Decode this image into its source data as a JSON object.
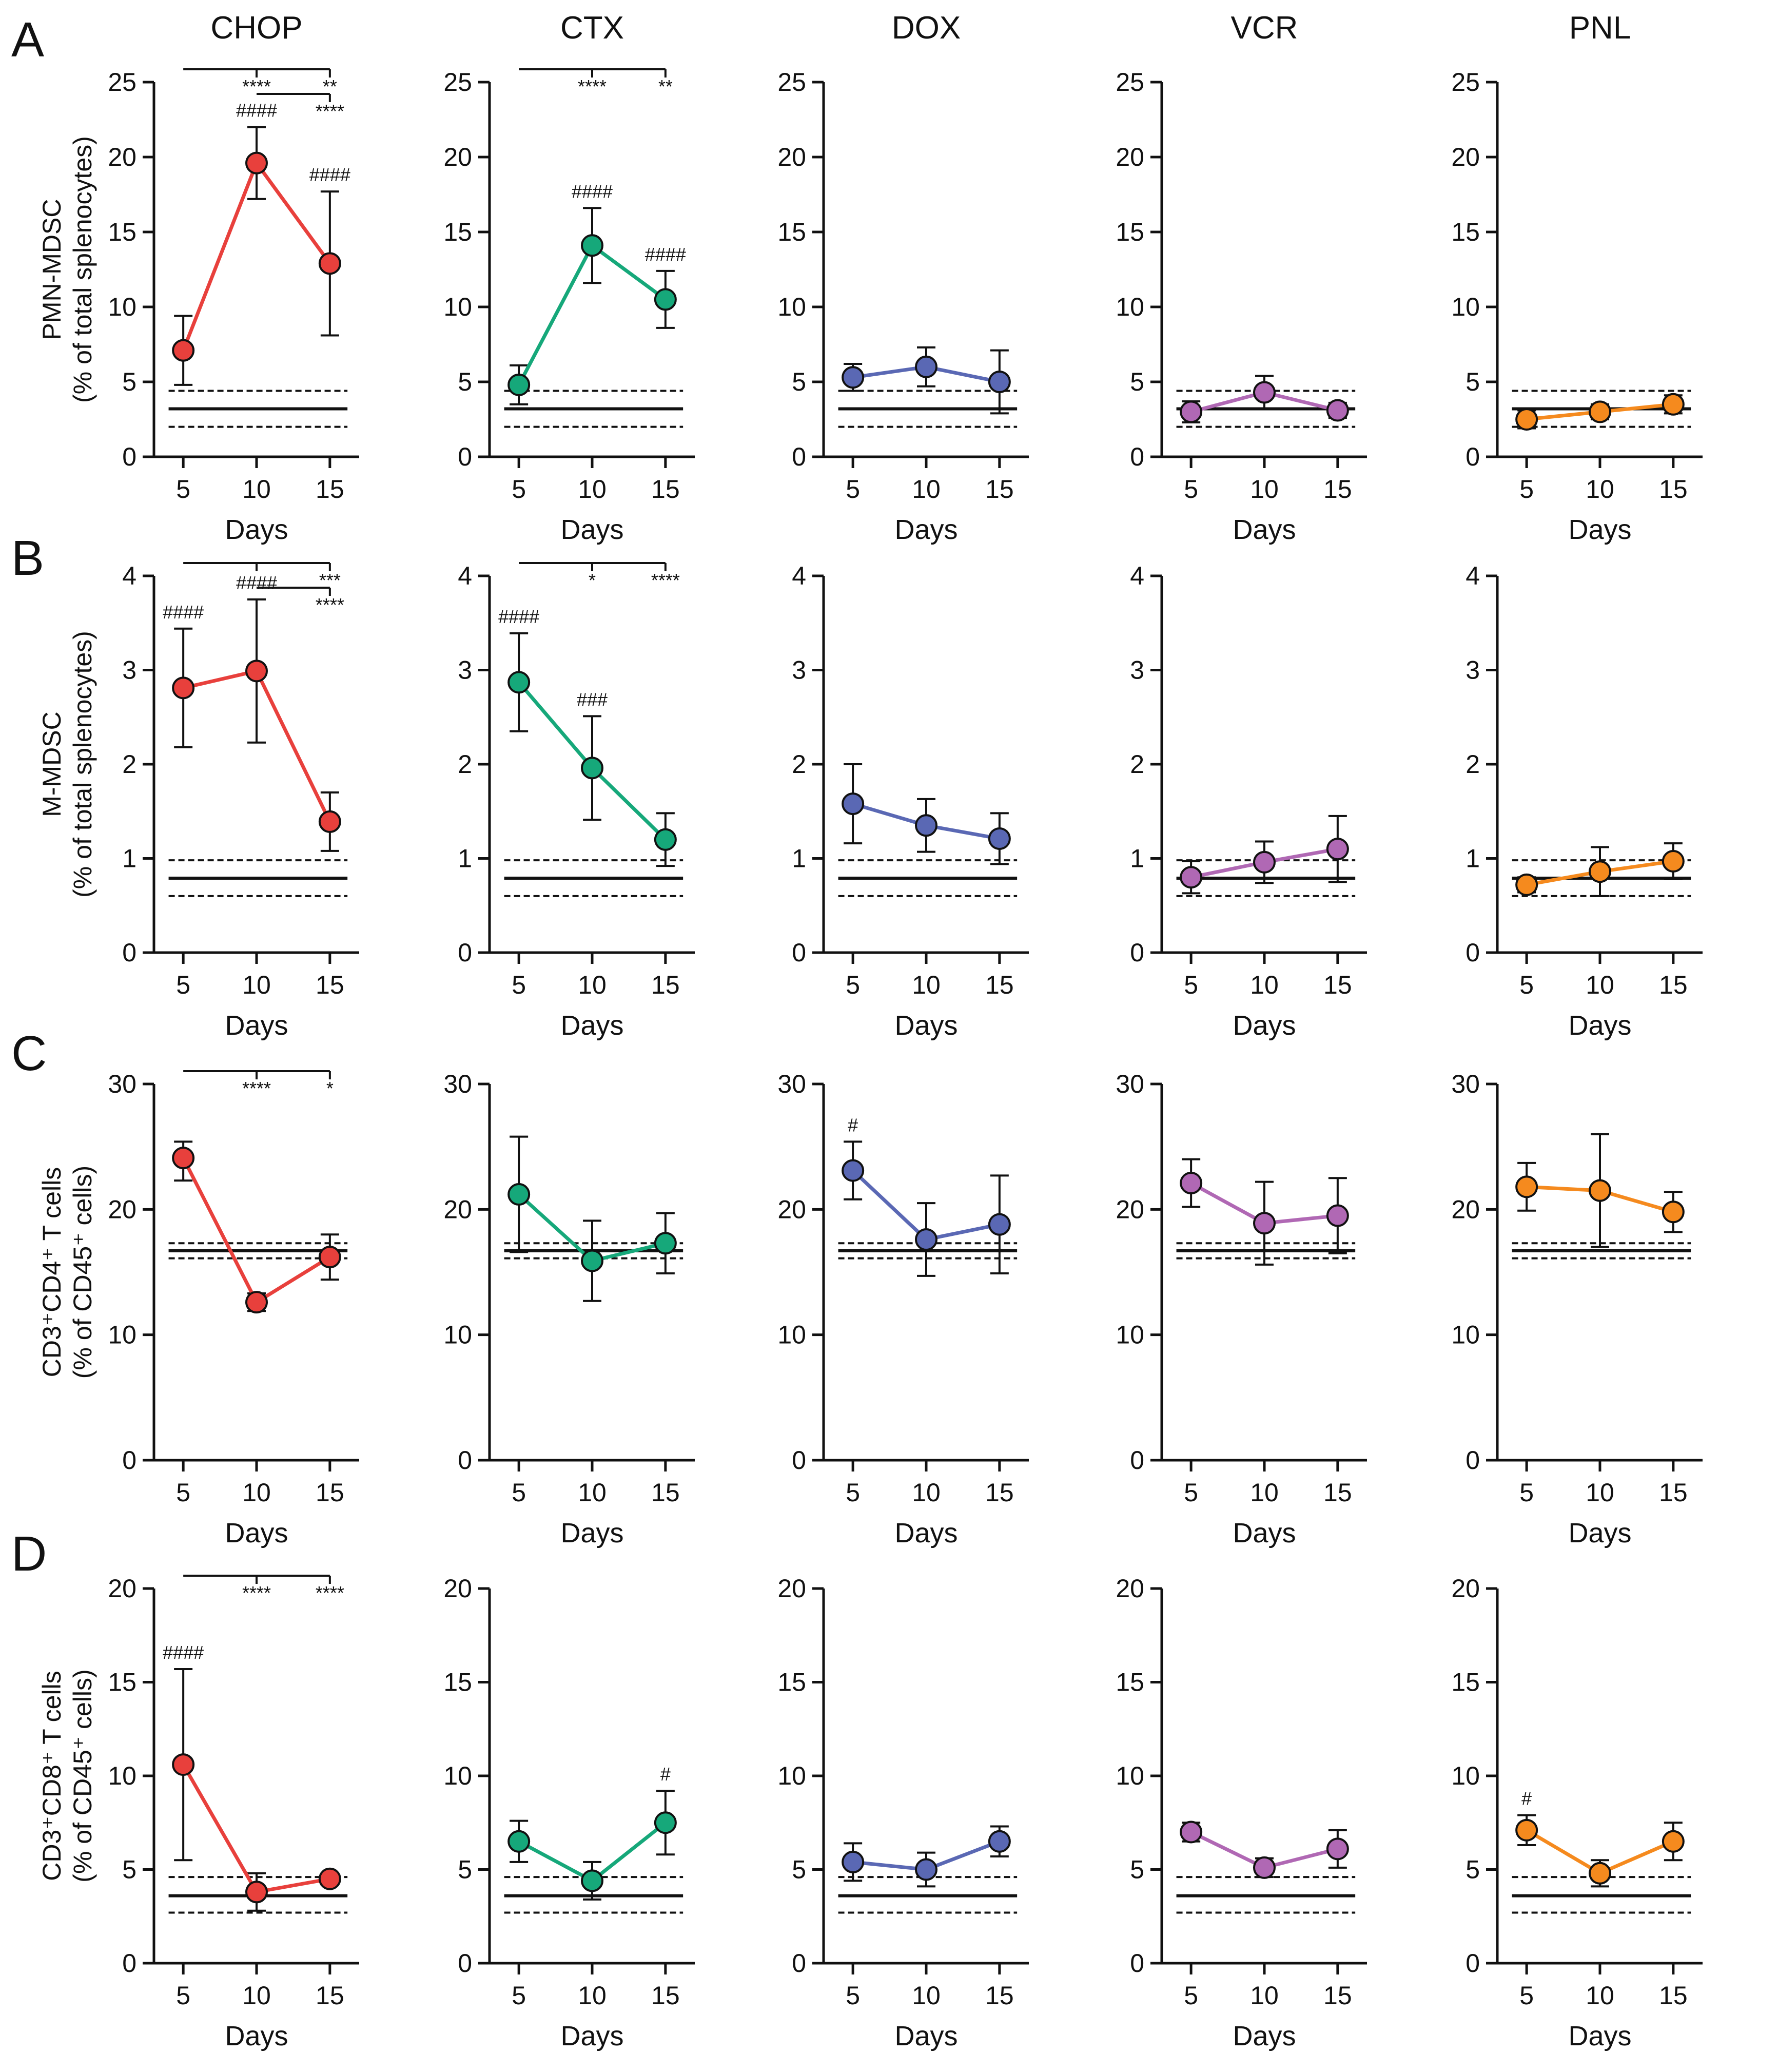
{
  "figure": {
    "panel_letters": [
      "A",
      "B",
      "C",
      "D"
    ],
    "colors": {
      "CHOP": "#e8403c",
      "CTX": "#16a87a",
      "DOX": "#5a68b4",
      "VCR": "#b068b4",
      "PNL": "#f58a1e"
    }
  },
  "chart_data": [
    {
      "type": "line",
      "row": "A",
      "col": "CHOP",
      "title": "CHOP",
      "ylabel": [
        "PMN-MDSC",
        "(% of total splenocytes)"
      ],
      "xlabel": "Days",
      "x": [
        5,
        10,
        15
      ],
      "values": [
        7.1,
        19.6,
        12.9
      ],
      "err_low": [
        2.3,
        2.4,
        4.8
      ],
      "err_high": [
        2.3,
        2.4,
        4.8
      ],
      "ylim": [
        0,
        25
      ],
      "yticks": [
        0,
        5,
        10,
        15,
        20,
        25
      ],
      "control": {
        "mean": 3.2,
        "upper": 4.4,
        "lower": 2.0
      },
      "hash": [
        "",
        "####",
        "####"
      ],
      "brackets": [
        {
          "levels": 1,
          "labels": [
            "****",
            "**"
          ]
        },
        {
          "level": 2,
          "labels": [
            "",
            "****"
          ]
        }
      ]
    },
    {
      "type": "line",
      "row": "A",
      "col": "CTX",
      "title": "CTX",
      "xlabel": "Days",
      "x": [
        5,
        10,
        15
      ],
      "values": [
        4.8,
        14.1,
        10.5
      ],
      "err_low": [
        1.3,
        2.5,
        1.9
      ],
      "err_high": [
        1.3,
        2.5,
        1.9
      ],
      "ylim": [
        0,
        25
      ],
      "yticks": [
        0,
        5,
        10,
        15,
        20,
        25
      ],
      "control": {
        "mean": 3.2,
        "upper": 4.4,
        "lower": 2.0
      },
      "hash": [
        "",
        "####",
        "####"
      ],
      "brackets": [
        {
          "level": 1,
          "labels": [
            "****",
            "**"
          ]
        }
      ]
    },
    {
      "type": "line",
      "row": "A",
      "col": "DOX",
      "title": "DOX",
      "xlabel": "Days",
      "x": [
        5,
        10,
        15
      ],
      "values": [
        5.3,
        6.0,
        5.0
      ],
      "err_low": [
        0.9,
        1.3,
        2.1
      ],
      "err_high": [
        0.9,
        1.3,
        2.1
      ],
      "ylim": [
        0,
        25
      ],
      "yticks": [
        0,
        5,
        10,
        15,
        20,
        25
      ],
      "control": {
        "mean": 3.2,
        "upper": 4.4,
        "lower": 2.0
      }
    },
    {
      "type": "line",
      "row": "A",
      "col": "VCR",
      "title": "VCR",
      "xlabel": "Days",
      "x": [
        5,
        10,
        15
      ],
      "values": [
        3.0,
        4.3,
        3.1
      ],
      "err_low": [
        0.7,
        1.1,
        0.5
      ],
      "err_high": [
        0.7,
        1.1,
        0.5
      ],
      "ylim": [
        0,
        25
      ],
      "yticks": [
        0,
        5,
        10,
        15,
        20,
        25
      ],
      "control": {
        "mean": 3.2,
        "upper": 4.4,
        "lower": 2.0
      }
    },
    {
      "type": "line",
      "row": "A",
      "col": "PNL",
      "title": "PNL",
      "xlabel": "Days",
      "x": [
        5,
        10,
        15
      ],
      "values": [
        2.5,
        3.0,
        3.5
      ],
      "err_low": [
        0.6,
        0.5,
        0.6
      ],
      "err_high": [
        0.6,
        0.5,
        0.6
      ],
      "ylim": [
        0,
        25
      ],
      "yticks": [
        0,
        5,
        10,
        15,
        20,
        25
      ],
      "control": {
        "mean": 3.2,
        "upper": 4.4,
        "lower": 2.0
      }
    },
    {
      "type": "line",
      "row": "B",
      "col": "CHOP",
      "ylabel": [
        "M-MDSC",
        "(% of total splenocytes)"
      ],
      "xlabel": "Days",
      "x": [
        5,
        10,
        15
      ],
      "values": [
        2.81,
        2.99,
        1.39
      ],
      "err_low": [
        0.63,
        0.76,
        0.31
      ],
      "err_high": [
        0.63,
        0.76,
        0.31
      ],
      "ylim": [
        0,
        4
      ],
      "yticks": [
        0,
        1,
        2,
        3,
        4
      ],
      "control": {
        "mean": 0.79,
        "upper": 0.98,
        "lower": 0.6
      },
      "hash": [
        "####",
        "####",
        ""
      ],
      "brackets": [
        {
          "level": 1,
          "labels": [
            "",
            "***"
          ]
        },
        {
          "level": 2,
          "labels": [
            "",
            "****"
          ]
        }
      ]
    },
    {
      "type": "line",
      "row": "B",
      "col": "CTX",
      "xlabel": "Days",
      "x": [
        5,
        10,
        15
      ],
      "values": [
        2.87,
        1.96,
        1.2
      ],
      "err_low": [
        0.52,
        0.55,
        0.28
      ],
      "err_high": [
        0.52,
        0.55,
        0.28
      ],
      "ylim": [
        0,
        4
      ],
      "yticks": [
        0,
        1,
        2,
        3,
        4
      ],
      "control": {
        "mean": 0.79,
        "upper": 0.98,
        "lower": 0.6
      },
      "hash": [
        "####",
        "###",
        ""
      ],
      "brackets": [
        {
          "level": 1,
          "labels": [
            "*",
            "****"
          ]
        }
      ]
    },
    {
      "type": "line",
      "row": "B",
      "col": "DOX",
      "xlabel": "Days",
      "x": [
        5,
        10,
        15
      ],
      "values": [
        1.58,
        1.35,
        1.21
      ],
      "err_low": [
        0.42,
        0.28,
        0.27
      ],
      "err_high": [
        0.42,
        0.28,
        0.27
      ],
      "ylim": [
        0,
        4
      ],
      "yticks": [
        0,
        1,
        2,
        3,
        4
      ],
      "control": {
        "mean": 0.79,
        "upper": 0.98,
        "lower": 0.6
      }
    },
    {
      "type": "line",
      "row": "B",
      "col": "VCR",
      "xlabel": "Days",
      "x": [
        5,
        10,
        15
      ],
      "values": [
        0.8,
        0.96,
        1.1
      ],
      "err_low": [
        0.17,
        0.22,
        0.35
      ],
      "err_high": [
        0.17,
        0.22,
        0.35
      ],
      "ylim": [
        0,
        4
      ],
      "yticks": [
        0,
        1,
        2,
        3,
        4
      ],
      "control": {
        "mean": 0.79,
        "upper": 0.98,
        "lower": 0.6
      }
    },
    {
      "type": "line",
      "row": "B",
      "col": "PNL",
      "xlabel": "Days",
      "x": [
        5,
        10,
        15
      ],
      "values": [
        0.72,
        0.86,
        0.97
      ],
      "err_low": [
        0.08,
        0.26,
        0.19
      ],
      "err_high": [
        0.08,
        0.26,
        0.19
      ],
      "ylim": [
        0,
        4
      ],
      "yticks": [
        0,
        1,
        2,
        3,
        4
      ],
      "control": {
        "mean": 0.79,
        "upper": 0.98,
        "lower": 0.6
      }
    },
    {
      "type": "line",
      "row": "C",
      "col": "CHOP",
      "ylabel": [
        "CD3⁺CD4⁺ T cells",
        "(% of CD45⁺ cells)"
      ],
      "xlabel": "Days",
      "x": [
        5,
        10,
        15
      ],
      "values": [
        24.1,
        12.6,
        16.2
      ],
      "err_low": [
        1.8,
        0.7,
        1.8
      ],
      "err_high": [
        1.3,
        0.7,
        1.8
      ],
      "ylim": [
        0,
        30
      ],
      "yticks": [
        0,
        10,
        20,
        30
      ],
      "control": {
        "mean": 16.7,
        "upper": 17.3,
        "lower": 16.1
      },
      "brackets": [
        {
          "level": 1,
          "labels": [
            "****",
            "*"
          ]
        }
      ]
    },
    {
      "type": "line",
      "row": "C",
      "col": "CTX",
      "xlabel": "Days",
      "x": [
        5,
        10,
        15
      ],
      "values": [
        21.2,
        15.9,
        17.3
      ],
      "err_low": [
        4.6,
        3.2,
        2.4
      ],
      "err_high": [
        4.6,
        3.2,
        2.4
      ],
      "ylim": [
        0,
        30
      ],
      "yticks": [
        0,
        10,
        20,
        30
      ],
      "control": {
        "mean": 16.7,
        "upper": 17.3,
        "lower": 16.1
      }
    },
    {
      "type": "line",
      "row": "C",
      "col": "DOX",
      "xlabel": "Days",
      "x": [
        5,
        10,
        15
      ],
      "values": [
        23.1,
        17.6,
        18.8
      ],
      "err_low": [
        2.3,
        2.9,
        3.9
      ],
      "err_high": [
        2.3,
        2.9,
        3.9
      ],
      "ylim": [
        0,
        30
      ],
      "yticks": [
        0,
        10,
        20,
        30
      ],
      "control": {
        "mean": 16.7,
        "upper": 17.3,
        "lower": 16.1
      },
      "hash": [
        "#",
        "",
        ""
      ]
    },
    {
      "type": "line",
      "row": "C",
      "col": "VCR",
      "xlabel": "Days",
      "x": [
        5,
        10,
        15
      ],
      "values": [
        22.1,
        18.9,
        19.5
      ],
      "err_low": [
        1.9,
        3.3,
        3.0
      ],
      "err_high": [
        1.9,
        3.3,
        3.0
      ],
      "ylim": [
        0,
        30
      ],
      "yticks": [
        0,
        10,
        20,
        30
      ],
      "control": {
        "mean": 16.7,
        "upper": 17.3,
        "lower": 16.1
      }
    },
    {
      "type": "line",
      "row": "C",
      "col": "PNL",
      "xlabel": "Days",
      "x": [
        5,
        10,
        15
      ],
      "values": [
        21.8,
        21.5,
        19.8
      ],
      "err_low": [
        1.9,
        4.5,
        1.6
      ],
      "err_high": [
        1.9,
        4.5,
        1.6
      ],
      "ylim": [
        0,
        30
      ],
      "yticks": [
        0,
        10,
        20,
        30
      ],
      "control": {
        "mean": 16.7,
        "upper": 17.3,
        "lower": 16.1
      }
    },
    {
      "type": "line",
      "row": "D",
      "col": "CHOP",
      "ylabel": [
        "CD3⁺CD8⁺ T cells",
        "(% of CD45⁺ cells)"
      ],
      "xlabel": "Days",
      "x": [
        5,
        10,
        15
      ],
      "values": [
        10.6,
        3.8,
        4.5
      ],
      "err_low": [
        5.1,
        1.0,
        0.3
      ],
      "err_high": [
        5.1,
        1.0,
        0.3
      ],
      "ylim": [
        0,
        20
      ],
      "yticks": [
        0,
        5,
        10,
        15,
        20
      ],
      "control": {
        "mean": 3.6,
        "upper": 4.6,
        "lower": 2.7
      },
      "hash": [
        "####",
        "",
        ""
      ],
      "brackets": [
        {
          "level": 1,
          "labels": [
            "****",
            "****"
          ]
        }
      ]
    },
    {
      "type": "line",
      "row": "D",
      "col": "CTX",
      "xlabel": "Days",
      "x": [
        5,
        10,
        15
      ],
      "values": [
        6.5,
        4.4,
        7.5
      ],
      "err_low": [
        1.1,
        1.0,
        1.7
      ],
      "err_high": [
        1.1,
        1.0,
        1.7
      ],
      "ylim": [
        0,
        20
      ],
      "yticks": [
        0,
        5,
        10,
        15,
        20
      ],
      "control": {
        "mean": 3.6,
        "upper": 4.6,
        "lower": 2.7
      },
      "hash": [
        "",
        "",
        "#"
      ]
    },
    {
      "type": "line",
      "row": "D",
      "col": "DOX",
      "xlabel": "Days",
      "x": [
        5,
        10,
        15
      ],
      "values": [
        5.4,
        5.0,
        6.5
      ],
      "err_low": [
        1.0,
        0.9,
        0.8
      ],
      "err_high": [
        1.0,
        0.9,
        0.8
      ],
      "ylim": [
        0,
        20
      ],
      "yticks": [
        0,
        5,
        10,
        15,
        20
      ],
      "control": {
        "mean": 3.6,
        "upper": 4.6,
        "lower": 2.7
      }
    },
    {
      "type": "line",
      "row": "D",
      "col": "VCR",
      "xlabel": "Days",
      "x": [
        5,
        10,
        15
      ],
      "values": [
        7.0,
        5.1,
        6.1
      ],
      "err_low": [
        0.5,
        0.5,
        1.0
      ],
      "err_high": [
        0.5,
        0.5,
        1.0
      ],
      "ylim": [
        0,
        20
      ],
      "yticks": [
        0,
        5,
        10,
        15,
        20
      ],
      "control": {
        "mean": 3.6,
        "upper": 4.6,
        "lower": 2.7
      }
    },
    {
      "type": "line",
      "row": "D",
      "col": "PNL",
      "xlabel": "Days",
      "x": [
        5,
        10,
        15
      ],
      "values": [
        7.1,
        4.8,
        6.5
      ],
      "err_low": [
        0.8,
        0.7,
        1.0
      ],
      "err_high": [
        0.8,
        0.7,
        1.0
      ],
      "ylim": [
        0,
        20
      ],
      "yticks": [
        0,
        5,
        10,
        15,
        20
      ],
      "control": {
        "mean": 3.6,
        "upper": 4.6,
        "lower": 2.7
      },
      "hash": [
        "#",
        "",
        ""
      ]
    }
  ]
}
